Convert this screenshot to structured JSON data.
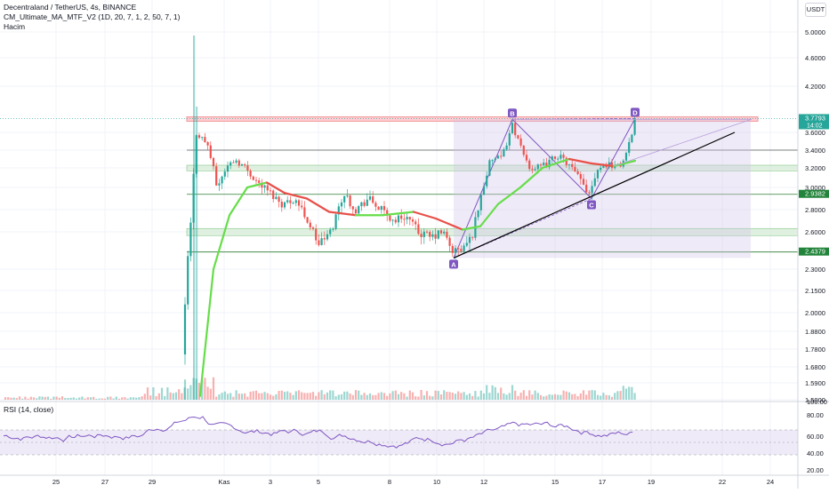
{
  "header": {
    "symbol_line": "Decentraland / TetherUS, 4s, BINANCE",
    "indicator_line": "CM_Ultimate_MA_MTF_V2 (1D, 20, 7, 1, 2, 50, 7, 1)",
    "volume_label": "Hacim",
    "currency": "USDT"
  },
  "rsi": {
    "label": "RSI (14, close)",
    "ticks": [
      "100.00",
      "80.00",
      "60.00",
      "40.00",
      "20.00"
    ]
  },
  "price_axis": {
    "ticks": [
      "5.0000",
      "4.6000",
      "4.2000",
      "3.6000",
      "3.4000",
      "3.2000",
      "3.0000",
      "2.8000",
      "2.6000",
      "2.3000",
      "2.1500",
      "2.0000",
      "1.8800",
      "1.7800",
      "1.6800",
      "1.5900",
      "1.5000"
    ],
    "tags": [
      {
        "text": "3.7793",
        "sub": "14:02",
        "color": "#26a69a"
      },
      {
        "text": "2.9382",
        "color": "#22843a"
      },
      {
        "text": "2.4379",
        "color": "#22843a"
      }
    ]
  },
  "time_axis": {
    "ticks": [
      "25",
      "27",
      "29",
      "Kas",
      "3",
      "5",
      "8",
      "10",
      "12",
      "15",
      "17",
      "19",
      "22",
      "24"
    ]
  },
  "pattern_labels": [
    "A",
    "B",
    "C",
    "D"
  ],
  "colors": {
    "up": "#26a69a",
    "down": "#ef5350",
    "ma_up": "#66dd4a",
    "ma_down": "#e8504a",
    "pattern": "#7e57c2",
    "zone": "#c8e6c9",
    "resistance": "#ef9a9a",
    "trendline": "#000000"
  },
  "chart_data": {
    "type": "candlestick",
    "title": "Decentraland / TetherUS, 4s, BINANCE",
    "y_axis": "price (USDT)",
    "ylim": [
      1.5,
      5.1
    ],
    "last_price": 3.7793,
    "horizontal_levels": [
      3.7793,
      3.4,
      3.2,
      2.9382,
      2.6,
      2.4379
    ],
    "support_zones": [
      [
        3.17,
        3.23
      ],
      [
        2.57,
        2.63
      ]
    ],
    "pattern_points": [
      {
        "label": "A",
        "x": "10 Kas",
        "y": 2.39
      },
      {
        "label": "B",
        "x": "12 Kas",
        "y": 3.77
      },
      {
        "label": "C",
        "x": "16 Kas",
        "y": 2.9
      },
      {
        "label": "D",
        "x": "18 Kas",
        "y": 3.78
      }
    ],
    "rsi_levels": [
      70,
      50,
      30
    ]
  }
}
